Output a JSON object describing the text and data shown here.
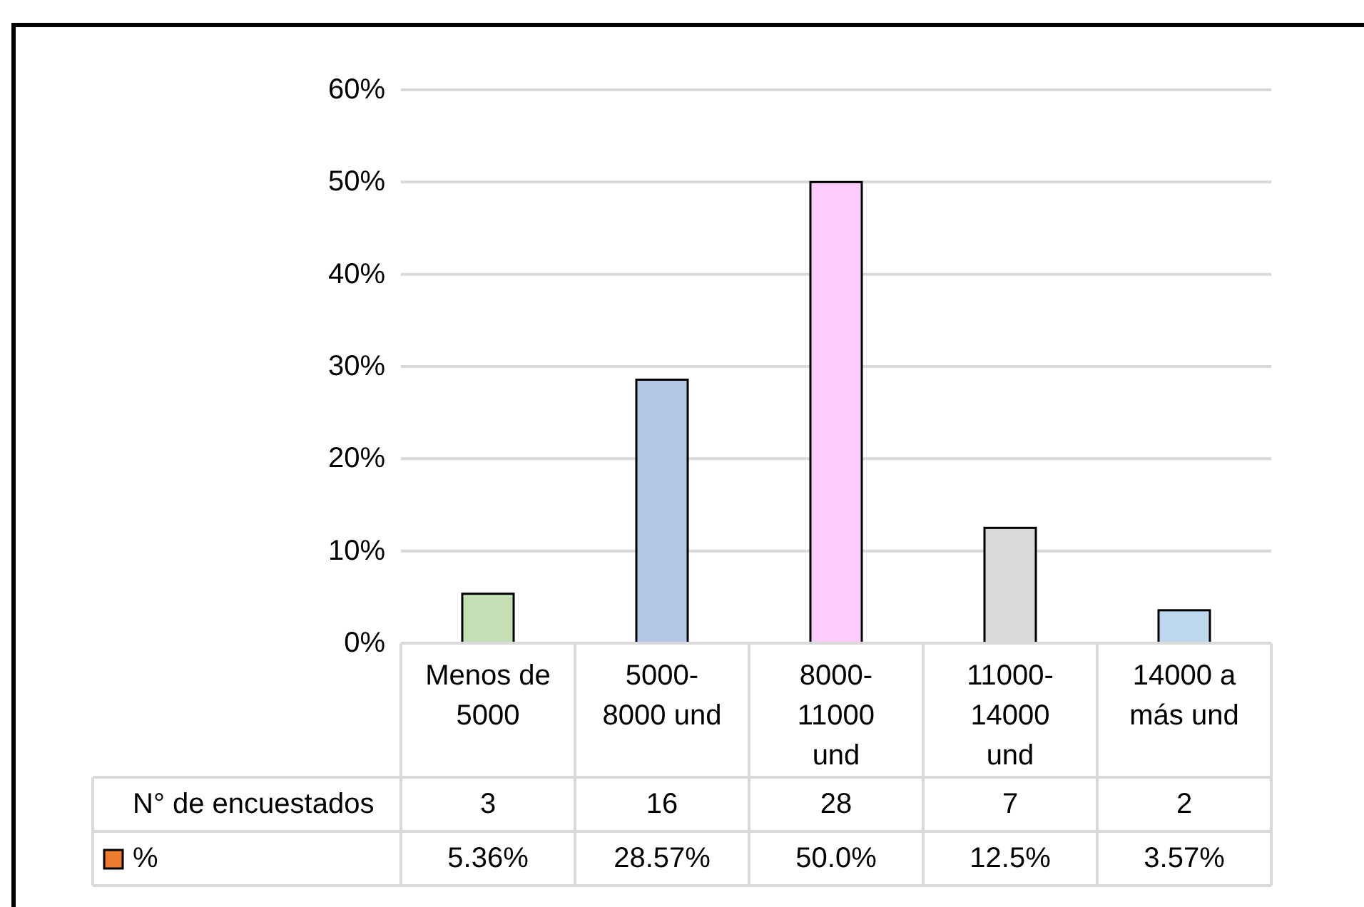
{
  "chart_data": [
    {
      "type": "bar",
      "categories": [
        "Menos de 5000",
        "5000-8000 und",
        "8000-11000 und",
        "11000-14000 und",
        "14000 a más und"
      ],
      "series": [
        {
          "name": "%",
          "color": "#ed7d31",
          "colors": [
            "#c5e0b4",
            "#b4c7e7",
            "#ffccff",
            "#d9d9d9",
            "#bdd7ee"
          ],
          "values": [
            5.36,
            28.57,
            50.0,
            12.5,
            3.57
          ],
          "value_labels": [
            "5.36%",
            "28.57%",
            "50.0%",
            "12.5%",
            "3.57%"
          ]
        }
      ],
      "ylim": [
        0,
        60
      ],
      "yticks": [
        {
          "value": 0,
          "label": "0%"
        },
        {
          "value": 10,
          "label": "10%"
        },
        {
          "value": 20,
          "label": "20%"
        },
        {
          "value": 30,
          "label": "30%"
        },
        {
          "value": 40,
          "label": "40%"
        },
        {
          "value": 50,
          "label": "50%"
        },
        {
          "value": 60,
          "label": "60%"
        }
      ],
      "grid": "y",
      "legend": "bottom"
    },
    {
      "type": "other",
      "series": [
        {
          "name": "N° de encuestados",
          "values": [
            3,
            16,
            28,
            7,
            2
          ]
        }
      ],
      "data_labels": true
    }
  ]
}
